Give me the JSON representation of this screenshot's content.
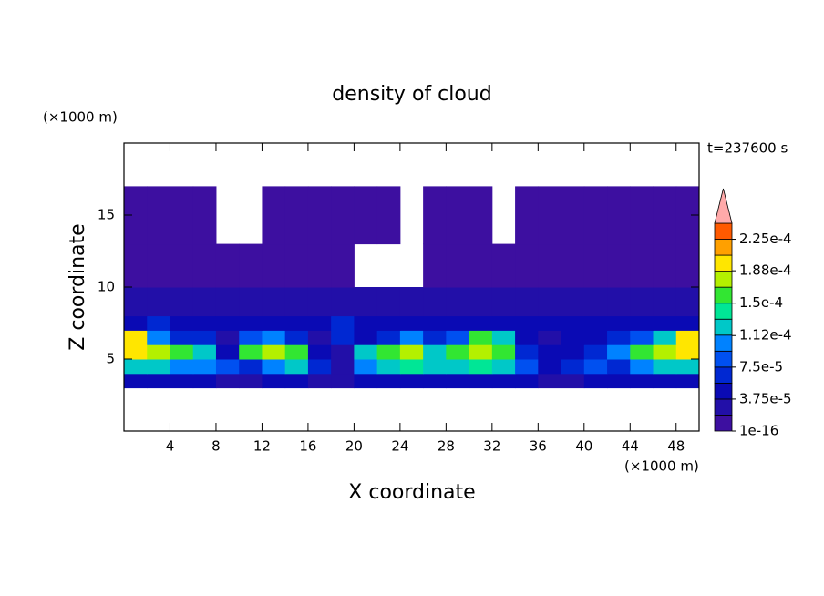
{
  "chart_data": {
    "type": "contourf",
    "title": "density of cloud",
    "x_label": "X coordinate",
    "y_label": "Z coordinate",
    "x_unit": "(×1000 m)",
    "y_unit": "(×1000 m)",
    "annotation": "t=237600 s",
    "xlim": [
      0,
      50
    ],
    "ylim": [
      0,
      20
    ],
    "xticks": [
      4,
      8,
      12,
      16,
      20,
      24,
      28,
      32,
      36,
      40,
      44,
      48
    ],
    "yticks": [
      5,
      10,
      15
    ],
    "x_edges": [
      0,
      2,
      4,
      6,
      8,
      10,
      12,
      14,
      16,
      18,
      20,
      22,
      24,
      26,
      28,
      30,
      32,
      34,
      36,
      38,
      40,
      42,
      44,
      46,
      48,
      50
    ],
    "y_edges": [
      3,
      4,
      5,
      6,
      7,
      8,
      10,
      13,
      17
    ],
    "z": [
      [
        4e-05,
        4e-05,
        4e-05,
        4e-05,
        3e-05,
        3e-05,
        4e-05,
        4e-05,
        2e-05,
        2e-05,
        4e-05,
        5e-05,
        5e-05,
        5e-05,
        5e-05,
        5e-05,
        5e-05,
        4e-05,
        3e-05,
        3e-05,
        4e-05,
        4e-05,
        4e-05,
        4e-05,
        4e-05
      ],
      [
        0.00013,
        0.00012,
        0.00011,
        0.0001,
        8e-05,
        6e-05,
        0.00011,
        0.00012,
        6e-05,
        3e-05,
        0.00011,
        0.00013,
        0.00014,
        0.00012,
        0.00012,
        0.00014,
        0.00013,
        9e-05,
        5e-05,
        6e-05,
        8e-05,
        6e-05,
        0.00011,
        0.00012,
        0.00013
      ],
      [
        0.0002,
        0.00018,
        0.00016,
        0.00012,
        4e-05,
        0.00016,
        0.00017,
        0.00015,
        4e-05,
        3e-05,
        0.00013,
        0.00016,
        0.00018,
        0.00013,
        0.00015,
        0.00018,
        0.00016,
        6e-05,
        4e-05,
        5e-05,
        6e-05,
        0.0001,
        0.00015,
        0.00018,
        0.0002
      ],
      [
        0.00019,
        0.0001,
        7e-05,
        6e-05,
        3e-05,
        8e-05,
        0.0001,
        6e-05,
        3e-05,
        6e-05,
        5e-05,
        7e-05,
        0.0001,
        6e-05,
        8e-05,
        0.00016,
        0.00012,
        4e-05,
        3e-05,
        4e-05,
        5e-05,
        6e-05,
        8e-05,
        0.00012,
        0.0002
      ],
      [
        5e-05,
        6e-05,
        5e-05,
        4e-05,
        4e-05,
        5e-05,
        5e-05,
        4e-05,
        4e-05,
        6e-05,
        4e-05,
        4e-05,
        5e-05,
        4e-05,
        4e-05,
        5e-05,
        5e-05,
        5e-05,
        4e-05,
        4e-05,
        4e-05,
        4e-05,
        4e-05,
        5e-05,
        5e-05
      ],
      [
        2e-05,
        2e-05,
        3e-05,
        2e-05,
        2e-05,
        2e-05,
        2e-05,
        2e-05,
        2e-05,
        3e-05,
        2e-05,
        2e-05,
        2e-05,
        2e-05,
        2e-05,
        3e-05,
        3e-05,
        2e-05,
        2e-05,
        3e-05,
        2e-05,
        2e-05,
        2e-05,
        2e-05,
        2e-05
      ],
      [
        5e-06,
        5e-06,
        5e-06,
        5e-06,
        5e-06,
        5e-06,
        5e-06,
        5e-06,
        5e-06,
        5e-06,
        null,
        null,
        null,
        5e-06,
        5e-06,
        5e-06,
        5e-06,
        5e-06,
        5e-06,
        5e-06,
        5e-06,
        5e-06,
        5e-06,
        5e-06,
        5e-06
      ],
      [
        3e-06,
        3e-06,
        3e-06,
        3e-06,
        null,
        null,
        3e-06,
        3e-06,
        3e-06,
        3e-06,
        3e-06,
        3e-06,
        null,
        3e-06,
        3e-06,
        3e-06,
        null,
        3e-06,
        3e-06,
        3e-06,
        3e-06,
        3e-06,
        3e-06,
        3e-06,
        3e-06
      ]
    ],
    "colorbar": {
      "levels": [
        1e-16,
        1.875e-05,
        3.75e-05,
        5.625e-05,
        7.5e-05,
        9.375e-05,
        0.0001125,
        0.00013125,
        0.00015,
        0.00016875,
        0.0001875,
        0.00020625,
        0.000225,
        0.00024375
      ],
      "colors": [
        "#3d0fa0",
        "#220fa8",
        "#0a0ab4",
        "#0028d2",
        "#0050f0",
        "#0082ff",
        "#00c8c8",
        "#00e696",
        "#32e632",
        "#b4f000",
        "#ffe600",
        "#ffa000",
        "#ff5a00"
      ],
      "extend_color": "#ffaaaa",
      "ticks": [
        1e-16,
        {
          "value": 3.75e-05,
          "label": "3.75e-5"
        },
        {
          "value": 7.5e-05,
          "label": "7.5e-5"
        },
        {
          "value": 0.000112,
          "label": "1.12e-4"
        },
        {
          "value": 0.00015,
          "label": "1.5e-4"
        },
        {
          "value": 0.000188,
          "label": "1.88e-4"
        },
        {
          "value": 0.000225,
          "label": "2.25e-4"
        }
      ]
    }
  }
}
